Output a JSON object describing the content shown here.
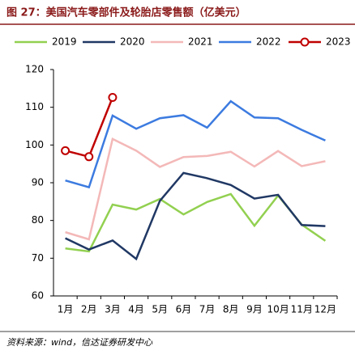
{
  "chart_data": {
    "type": "line",
    "title": "图 27：美国汽车零部件及轮胎店零售额（亿美元）",
    "source": "资料来源：wind，信达证券研发中心",
    "categories": [
      "1月",
      "2月",
      "3月",
      "4月",
      "5月",
      "6月",
      "7月",
      "8月",
      "9月",
      "10月",
      "11月",
      "12月"
    ],
    "series": [
      {
        "name": "2019",
        "color": "#92d050",
        "values": [
          72.6,
          71.8,
          84.2,
          82.9,
          85.7,
          81.6,
          84.9,
          87.0,
          78.6,
          86.6,
          78.9,
          74.6
        ]
      },
      {
        "name": "2020",
        "color": "#203864",
        "values": [
          75.3,
          72.3,
          74.7,
          69.8,
          85.2,
          92.6,
          91.2,
          89.4,
          85.8,
          86.8,
          78.8,
          78.5
        ]
      },
      {
        "name": "2021",
        "color": "#f4b8b8",
        "values": [
          76.9,
          75.0,
          101.6,
          98.5,
          94.2,
          96.8,
          97.1,
          98.2,
          94.3,
          98.4,
          94.4,
          95.7
        ]
      },
      {
        "name": "2022",
        "color": "#3c7be0",
        "values": [
          90.6,
          88.8,
          107.8,
          104.3,
          107.1,
          107.9,
          104.6,
          111.6,
          107.3,
          107.1,
          104.0,
          101.2
        ]
      },
      {
        "name": "2023",
        "color": "#c00000",
        "marker": true,
        "values": [
          98.5,
          96.9,
          112.6,
          null,
          null,
          null,
          null,
          null,
          null,
          null,
          null,
          null
        ]
      }
    ],
    "ylim": [
      60,
      120
    ],
    "yticks": [
      60,
      70,
      80,
      90,
      100,
      110,
      120
    ],
    "grid": false
  }
}
